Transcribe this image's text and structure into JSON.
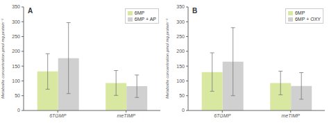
{
  "chart_data": [
    {
      "type": "bar",
      "title": "A",
      "categories": [
        "6TGMP",
        "meTIMP"
      ],
      "series": [
        {
          "name": "6MP",
          "color": "#d8e8a0",
          "values": [
            132,
            93
          ],
          "errors": [
            60,
            42
          ]
        },
        {
          "name": "6MP + AP",
          "color": "#d0d0d0",
          "values": [
            177,
            82
          ],
          "errors": [
            120,
            38
          ]
        }
      ],
      "ylabel": "Metabolite concentration pmol mg protein⁻¹",
      "ylim": [
        0,
        350
      ],
      "yticks": [
        0,
        50,
        100,
        150,
        200,
        250,
        300,
        350
      ],
      "legend": "upper right",
      "grid": false
    },
    {
      "type": "bar",
      "title": "B",
      "categories": [
        "6TGMP",
        "meTIMP"
      ],
      "series": [
        {
          "name": "6MP",
          "color": "#d8e8a0",
          "values": [
            130,
            93
          ],
          "errors": [
            65,
            40
          ]
        },
        {
          "name": "6MP + OXY",
          "color": "#d0d0d0",
          "values": [
            165,
            83
          ],
          "errors": [
            115,
            45
          ]
        }
      ],
      "ylabel": "Metabolite concentration pmol mg protein⁻¹",
      "ylim": [
        0,
        350
      ],
      "yticks": [
        0,
        50,
        100,
        150,
        200,
        250,
        300,
        350
      ],
      "legend": "upper right",
      "grid": false
    }
  ]
}
